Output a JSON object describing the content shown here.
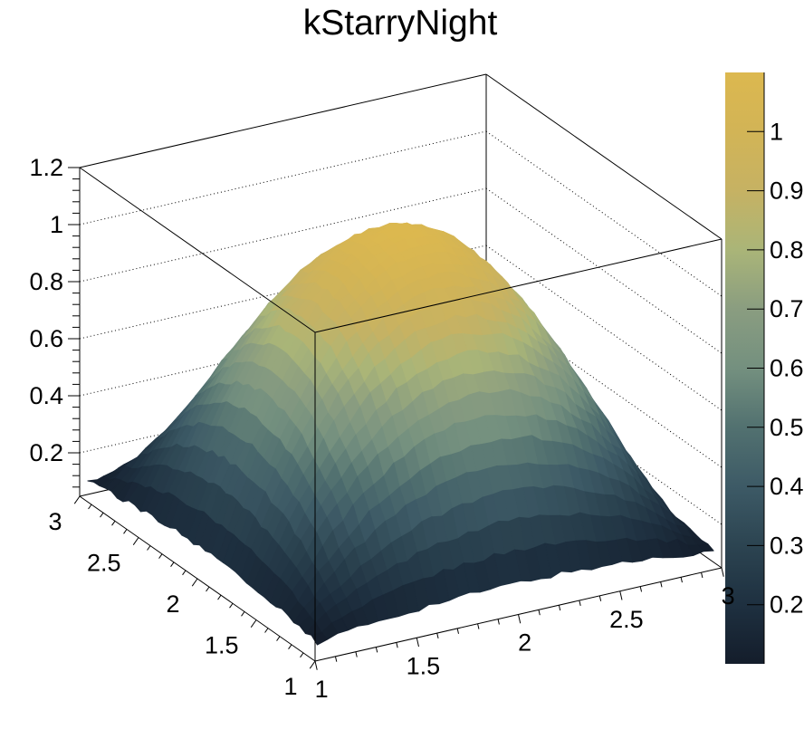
{
  "chart_data": {
    "type": "surface",
    "title": "kStarryNight",
    "palette_name": "kStarryNight",
    "draw_option": "surf2z",
    "z_function": "0.1+(1-(x-2)*(x-2))*(1-(y-2)*(y-2))",
    "x_range": [
      1,
      3
    ],
    "y_range": [
      1,
      3
    ],
    "z_range": [
      0.1,
      1.1
    ],
    "z_axis_max": 1.2,
    "grid_bins": 40,
    "noise_amplitude": 0.009,
    "x_ticks": [
      1,
      1.5,
      2,
      2.5,
      3
    ],
    "x_tick_labels": [
      "1",
      "1.5",
      "2",
      "2.5",
      "3"
    ],
    "y_ticks": [
      1,
      1.5,
      2,
      2.5,
      3
    ],
    "y_tick_labels": [
      "1",
      "1.5",
      "2",
      "2.5",
      "3"
    ],
    "z_axis_ticks": [
      0.2,
      0.4,
      0.6,
      0.8,
      1.0,
      1.2
    ],
    "z_axis_tick_labels": [
      "0.2",
      "0.4",
      "0.6",
      "0.8",
      "1",
      "1.2"
    ],
    "z_gridlines": [
      0.2,
      0.4,
      0.6,
      0.8,
      1.0
    ],
    "colorbar_ticks": [
      0.2,
      0.3,
      0.4,
      0.5,
      0.6,
      0.7,
      0.8,
      0.9,
      1.0
    ],
    "colorbar_tick_labels": [
      "0.2",
      "0.3",
      "0.4",
      "0.5",
      "0.6",
      "0.7",
      "0.8",
      "0.9",
      "1"
    ],
    "palette_stops": [
      "#141d2b",
      "#1e3040",
      "#2c4451",
      "#3d5a66",
      "#527170",
      "#74907f",
      "#8a9d80",
      "#aab578",
      "#c6b263",
      "#d2b456",
      "#dcb84f"
    ],
    "background_color": "#ffffff",
    "frame_color": "#000000",
    "grid_on": true,
    "legend": "color bar right"
  }
}
